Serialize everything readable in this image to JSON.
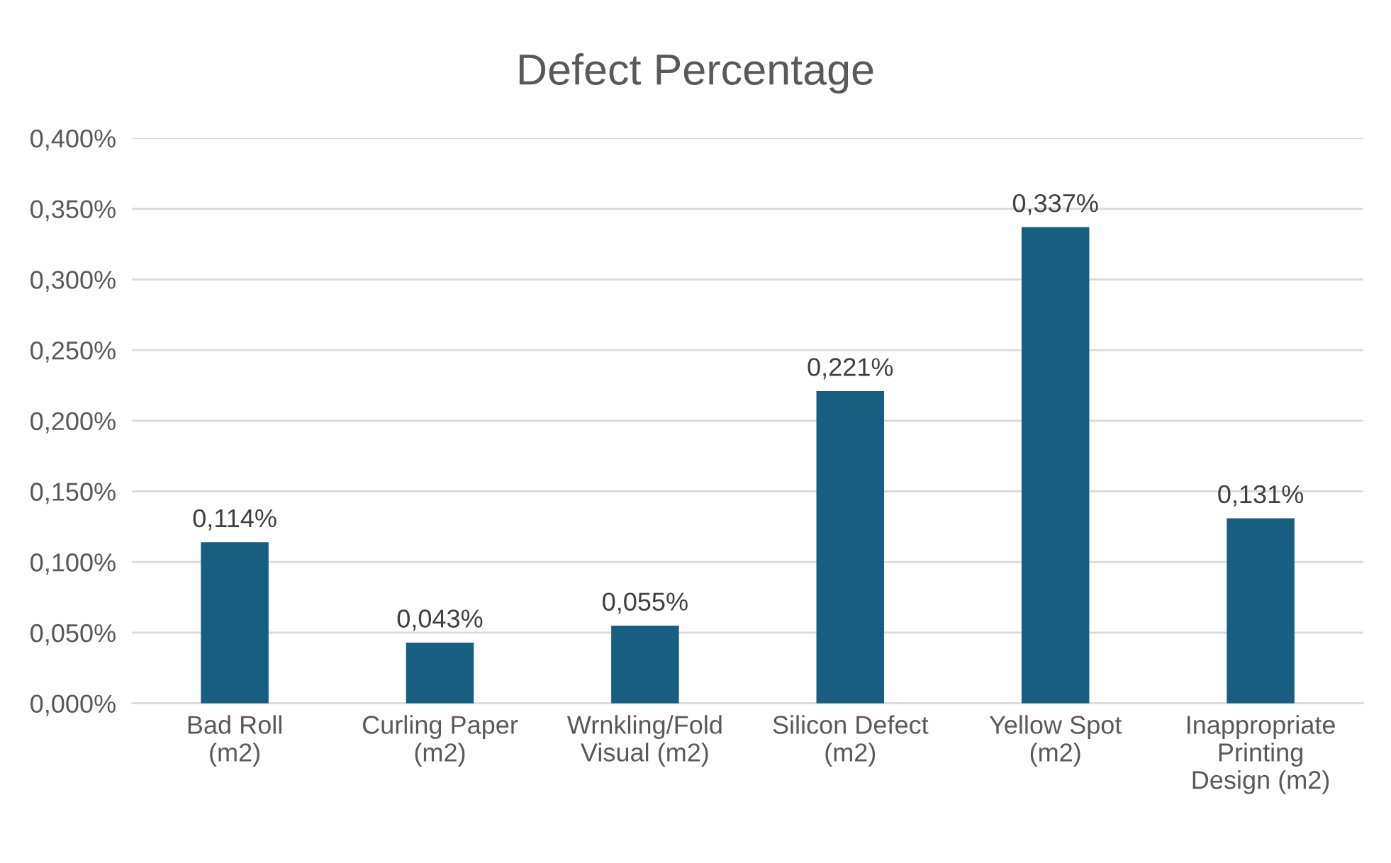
{
  "chart_data": {
    "type": "bar",
    "title": "Defect Percentage",
    "categories": [
      "Bad Roll\n(m2)",
      "Curling Paper\n(m2)",
      "Wrnkling/Fold\nVisual (m2)",
      "Silicon Defect\n(m2)",
      "Yellow Spot\n(m2)",
      "Inappropriate\nPrinting\nDesign (m2)"
    ],
    "values": [
      0.114,
      0.043,
      0.055,
      0.221,
      0.337,
      0.131
    ],
    "value_labels": [
      "0,114%",
      "0,043%",
      "0,055%",
      "0,221%",
      "0,337%",
      "0,131%"
    ],
    "color": "#175e81",
    "ylim": [
      0,
      0.4
    ],
    "yticks": [
      {
        "value": 0,
        "label": "0,000%"
      },
      {
        "value": 0.05,
        "label": "0,050%"
      },
      {
        "value": 0.1,
        "label": "0,100%"
      },
      {
        "value": 0.15,
        "label": "0,150%"
      },
      {
        "value": 0.2,
        "label": "0,200%"
      },
      {
        "value": 0.25,
        "label": "0,250%"
      },
      {
        "value": 0.3,
        "label": "0,300%"
      },
      {
        "value": 0.35,
        "label": "0,350%"
      },
      {
        "value": 0.4,
        "label": "0,400%"
      }
    ],
    "grid": "y",
    "legend": false
  }
}
